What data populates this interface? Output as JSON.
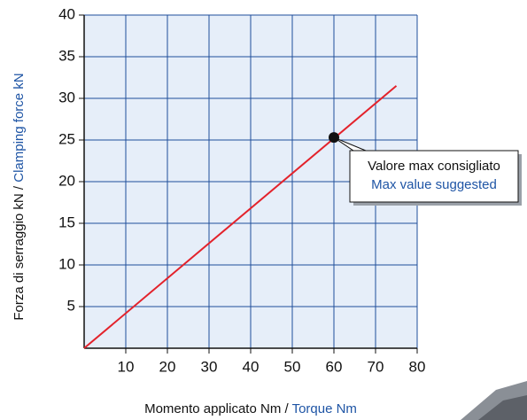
{
  "chart_data": {
    "type": "line",
    "ylabel": {
      "text": "Forza di serraggio kN  /",
      "subtext": "Clamping force kN"
    },
    "xlabel": {
      "text": "Momento applicato Nm /",
      "subtext": "Torque Nm"
    },
    "series": [
      {
        "color": "#e3222b",
        "x": [
          0,
          75
        ],
        "values": [
          0,
          31.5
        ]
      }
    ],
    "annotation": {
      "lines": [
        "Valore max consigliato",
        "Max value suggested"
      ],
      "x": 60,
      "y": 25.3
    },
    "xlim": [
      0,
      80
    ],
    "xticks": [
      10,
      20,
      30,
      40,
      50,
      60,
      70,
      80
    ],
    "ylim": [
      0,
      40
    ],
    "yticks": [
      5,
      10,
      15,
      20,
      25,
      30,
      35,
      40
    ],
    "grid": true
  }
}
